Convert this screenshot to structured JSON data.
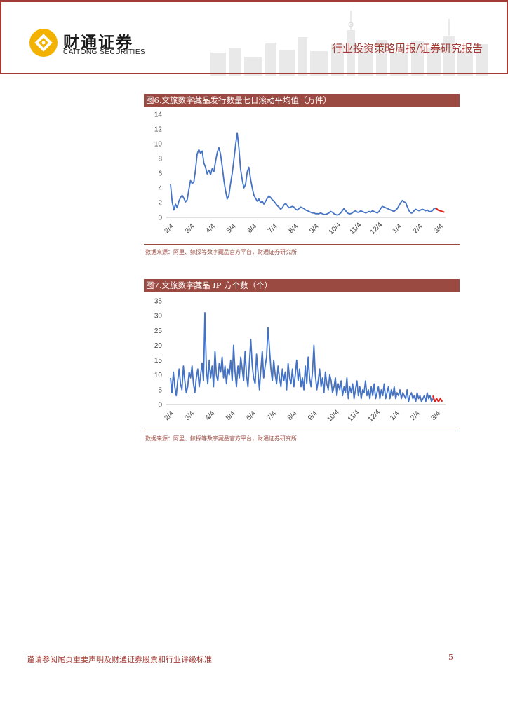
{
  "header": {
    "brand_cn": "财通证券",
    "brand_en": "CAITONG SECURITIES",
    "title": "行业投资策略周报/证券研究报告",
    "accent_color": "#a33a33"
  },
  "figures": [
    {
      "title": "图6.文旅数字藏品发行数量七日滚动平均值（万件）",
      "source": "数据来源：阿里、鲸探等数字藏品官方平台，财通证券研究所"
    },
    {
      "title": "图7.文旅数字藏品 IP 方个数（个）",
      "source": "数据来源：阿里、鲸探等数字藏品官方平台，财通证券研究所"
    }
  ],
  "chart_data": [
    {
      "type": "line",
      "title": "图6.文旅数字藏品发行数量七日滚动平均值（万件）",
      "x_ticks": [
        "2/4",
        "3/4",
        "4/4",
        "5/4",
        "6/4",
        "7/4",
        "8/4",
        "9/4",
        "10/4",
        "11/4",
        "12/4",
        "1/4",
        "2/4",
        "3/4"
      ],
      "y_ticks": [
        0,
        2,
        4,
        6,
        8,
        10,
        12,
        14
      ],
      "ylim": [
        0,
        14
      ],
      "grid": false,
      "series_colors": [
        "#4472c4",
        "#e0201b"
      ],
      "series": [
        {
          "values": [
            4.5,
            2.1,
            1.0,
            1.8,
            1.3,
            2.2,
            2.7,
            3.0,
            2.6,
            2.1,
            2.4,
            3.8,
            5.0,
            4.6,
            4.8,
            6.5,
            8.6,
            9.2,
            8.7,
            9.0,
            7.4,
            6.8,
            5.9,
            6.4,
            5.8,
            6.6,
            6.2,
            7.6,
            8.8,
            9.5,
            8.6,
            6.9,
            5.0,
            3.6,
            2.5,
            3.0,
            4.6,
            6.0,
            7.8,
            9.8,
            11.5,
            9.4,
            6.6,
            5.1,
            4.0,
            4.5,
            6.2,
            6.8,
            5.2,
            4.0,
            3.0,
            2.6,
            2.2,
            2.5,
            2.0,
            2.2,
            1.8,
            2.2,
            2.6,
            2.9,
            2.7,
            2.4,
            2.2,
            1.9,
            1.6,
            1.4,
            1.1,
            1.3,
            1.7,
            1.9,
            1.6,
            1.3,
            1.4,
            1.5,
            1.4,
            1.1,
            1.0,
            1.2,
            1.4,
            1.3,
            1.2,
            1.0,
            0.9,
            0.8,
            0.7,
            0.6,
            0.6,
            0.5,
            0.5,
            0.5,
            0.6,
            0.5,
            0.4,
            0.4,
            0.5,
            0.6,
            0.8,
            0.7,
            0.5,
            0.4,
            0.3,
            0.4,
            0.6,
            0.9,
            1.2,
            0.9,
            0.6,
            0.5,
            0.5,
            0.6,
            0.8,
            0.9,
            0.7,
            0.7,
            0.9,
            0.8,
            0.7,
            0.6,
            0.7,
            0.8,
            0.7,
            0.9,
            0.8,
            0.7,
            0.6,
            0.8,
            1.2,
            1.5,
            1.4,
            1.3,
            1.2,
            1.1,
            1.0,
            0.9,
            0.8,
            1.0,
            1.2,
            1.6,
            2.0,
            2.3,
            2.1,
            2.0,
            1.4,
            0.9,
            0.6,
            0.6,
            0.9,
            1.1,
            1.0,
            0.9,
            1.0,
            1.1,
            1.0,
            0.9,
            1.0,
            0.8,
            0.8,
            0.9,
            1.2,
            1.2
          ]
        },
        {
          "values": [
            1.3,
            1.0,
            0.9,
            0.8,
            0.7
          ]
        }
      ]
    },
    {
      "type": "line",
      "title": "图7.文旅数字藏品 IP 方个数（个）",
      "x_ticks": [
        "2/4",
        "3/4",
        "4/4",
        "5/4",
        "6/4",
        "7/4",
        "8/4",
        "9/4",
        "10/4",
        "11/4",
        "12/4",
        "1/4",
        "2/4",
        "3/4"
      ],
      "y_ticks": [
        0,
        5,
        10,
        15,
        20,
        25,
        30,
        35
      ],
      "ylim": [
        0,
        35
      ],
      "grid": false,
      "series_colors": [
        "#4472c4",
        "#e0201b"
      ],
      "series": [
        {
          "values": [
            9,
            4,
            11,
            6,
            3,
            8,
            12,
            7,
            5,
            13,
            8,
            4,
            6,
            11,
            9,
            13,
            7,
            4,
            9,
            12,
            6,
            10,
            14,
            8,
            31,
            12,
            7,
            15,
            9,
            13,
            6,
            18,
            10,
            8,
            14,
            11,
            16,
            9,
            13,
            7,
            12,
            10,
            15,
            8,
            20,
            11,
            6,
            13,
            9,
            16,
            12,
            8,
            18,
            10,
            6,
            14,
            22,
            13,
            9,
            7,
            17,
            11,
            5,
            12,
            18,
            9,
            13,
            16,
            26,
            19,
            12,
            8,
            15,
            10,
            7,
            13,
            9,
            6,
            12,
            8,
            11,
            5,
            14,
            9,
            7,
            12,
            6,
            10,
            15,
            8,
            12,
            6,
            9,
            5,
            13,
            7,
            16,
            9,
            6,
            11,
            20,
            10,
            5,
            8,
            12,
            6,
            9,
            4,
            11,
            7,
            5,
            10,
            8,
            4,
            6,
            9,
            3,
            7,
            5,
            8,
            3,
            6,
            4,
            9,
            2,
            6,
            4,
            7,
            2,
            5,
            8,
            3,
            6,
            2,
            5,
            4,
            8,
            3,
            5,
            2,
            6,
            3,
            7,
            2,
            4,
            6,
            2,
            5,
            3,
            7,
            2,
            4,
            6,
            2,
            5,
            3,
            6,
            2,
            4,
            3,
            5,
            2,
            4,
            3,
            2,
            5,
            1,
            3,
            4,
            2,
            3,
            1,
            4,
            2,
            3,
            1,
            2,
            3,
            1,
            4,
            2,
            3,
            1,
            2
          ]
        },
        {
          "values": [
            3,
            1,
            2,
            1,
            2,
            1
          ]
        }
      ]
    }
  ],
  "footer": {
    "note": "谨请参阅尾页重要声明及财通证券股票和行业评级标准",
    "page": "5"
  }
}
